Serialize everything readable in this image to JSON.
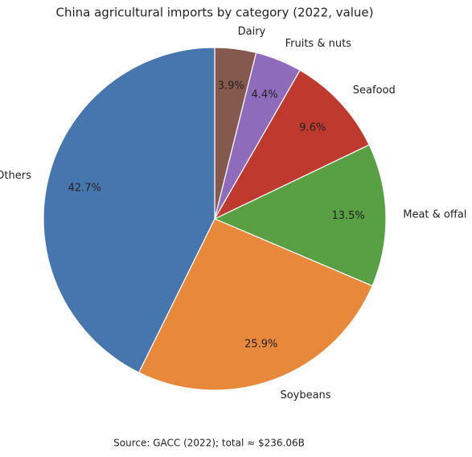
{
  "chart_data": {
    "type": "pie",
    "title": "China agricultural imports by category (2022, value)",
    "categories": [
      "Dairy",
      "Fruits & nuts",
      "Seafood",
      "Meat & offal",
      "Soybeans",
      "Others"
    ],
    "values": [
      3.9,
      4.4,
      9.6,
      13.5,
      25.9,
      42.7
    ],
    "value_labels": [
      "3.9%",
      "4.4%",
      "9.6%",
      "13.5%",
      "25.9%",
      "42.7%"
    ],
    "colors": [
      "#85594e",
      "#8e6cbb",
      "#be3a2f",
      "#59a044",
      "#e8883a",
      "#4776ae"
    ],
    "note": "Source: GACC (2022); total ≈ $236.06B"
  }
}
